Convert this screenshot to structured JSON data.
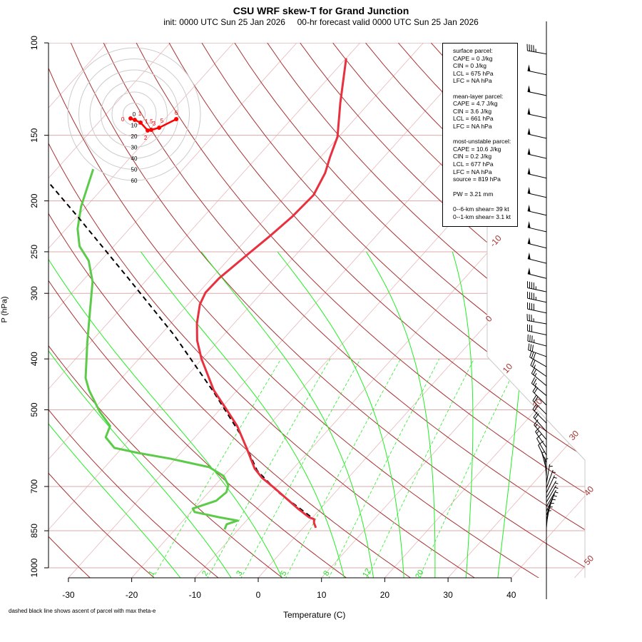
{
  "header": {
    "title": "CSU WRF skew-T for Grand Junction",
    "subtitle": "init: 0000 UTC Sun 25 Jan 2026     00-hr forecast valid 0000 UTC Sun 25 Jan 2026"
  },
  "footnote": "dashed black line shows ascent of parcel with max theta-e",
  "info_box": {
    "surface_title": "surface parcel:",
    "surface_cape": "CAPE = 0 J/kg",
    "surface_cin": "CIN = 0 J/kg",
    "surface_lcl": "LCL = 675 hPa",
    "surface_lfc": "LFC = NA hPa",
    "ml_title": "mean-layer parcel:",
    "ml_cape": "CAPE = 4.7 J/kg",
    "ml_cin": "CIN = 3.6 J/kg",
    "ml_lcl": "LCL = 661 hPa",
    "ml_lfc": "LFC = NA hPa",
    "mu_title": "most-unstable parcel:",
    "mu_cape": "CAPE = 10.6 J/kg",
    "mu_cin": "CIN = 0.2 J/kg",
    "mu_lcl": "LCL = 677 hPa",
    "mu_lfc": "LFC = NA hPa",
    "mu_source": "source = 819 hPa",
    "pw": "PW =  3.21 mm",
    "shear_6km": "0--6-km shear= 39 kt",
    "shear_1km": "0--1-km shear= 3.1 kt"
  },
  "chart_data": {
    "type": "line",
    "subtype": "skew-T log-P",
    "xlabel": "Temperature (C)",
    "ylabel": "P (hPa)",
    "x_ticks": [
      "-30",
      "-20",
      "-10",
      "0",
      "10",
      "20",
      "30",
      "40"
    ],
    "y_ticks": [
      "100",
      "150",
      "200",
      "250",
      "300",
      "400",
      "500",
      "700",
      "850",
      "1000"
    ],
    "isotherm_labels": [
      "-10",
      "0",
      "10",
      "20",
      "30",
      "40",
      "50"
    ],
    "mixing_ratio_labels": [
      "1",
      "2",
      "3",
      "5",
      "8",
      "12",
      "20"
    ],
    "colors": {
      "temperature": "#e8303f",
      "dewpoint": "#5ccb4a",
      "parcel": "#000000",
      "isotherm": "#e8b8b8",
      "dry_adiabat": "#a83232",
      "moist_adiabat": "#22ee22",
      "mixing_ratio": "#22ee22",
      "hodograph": "#ff0000"
    },
    "temperature": [
      [
        107,
        -60.0
      ],
      [
        130,
        -54.6
      ],
      [
        151,
        -50.2
      ],
      [
        165,
        -48.5
      ],
      [
        177,
        -47.0
      ],
      [
        195,
        -45.7
      ],
      [
        214,
        -46.0
      ],
      [
        234,
        -46.8
      ],
      [
        256,
        -47.8
      ],
      [
        281,
        -48.8
      ],
      [
        299,
        -48.9
      ],
      [
        315,
        -48.1
      ],
      [
        342,
        -45.9
      ],
      [
        369,
        -43.4
      ],
      [
        400,
        -40.1
      ],
      [
        459,
        -33.7
      ],
      [
        498,
        -29.1
      ],
      [
        537,
        -24.9
      ],
      [
        595,
        -20.0
      ],
      [
        647,
        -16.1
      ],
      [
        674,
        -13.6
      ],
      [
        702,
        -10.5
      ],
      [
        734,
        -7.2
      ],
      [
        771,
        -3.6
      ],
      [
        801,
        -0.6
      ],
      [
        808,
        0.5
      ],
      [
        821,
        1.0
      ],
      [
        839,
        2.0
      ]
    ],
    "dewpoint": [
      [
        174,
        -84.2
      ],
      [
        205,
        -80.8
      ],
      [
        226,
        -78.2
      ],
      [
        244,
        -75.4
      ],
      [
        260,
        -71.9
      ],
      [
        285,
        -68.3
      ],
      [
        318,
        -65.1
      ],
      [
        372,
        -60.5
      ],
      [
        435,
        -55.7
      ],
      [
        459,
        -53.4
      ],
      [
        504,
        -48.7
      ],
      [
        537,
        -45.0
      ],
      [
        564,
        -44.1
      ],
      [
        591,
        -41.2
      ],
      [
        604,
        -36.8
      ],
      [
        620,
        -30.7
      ],
      [
        643,
        -23.5
      ],
      [
        668,
        -20.0
      ],
      [
        696,
        -17.9
      ],
      [
        718,
        -17.2
      ],
      [
        745,
        -17.6
      ],
      [
        771,
        -20.2
      ],
      [
        783,
        -19.4
      ],
      [
        801,
        -14.8
      ],
      [
        813,
        -11.4
      ],
      [
        826,
        -12.6
      ],
      [
        845,
        -12.2
      ]
    ],
    "parcel": [
      [
        166,
        -96.0
      ],
      [
        215,
        -79.7
      ],
      [
        281,
        -63.1
      ],
      [
        361,
        -47.7
      ],
      [
        463,
        -33.4
      ],
      [
        559,
        -23.0
      ],
      [
        653,
        -15.4
      ],
      [
        718,
        -9.0
      ],
      [
        808,
        0.5
      ]
    ],
    "winds": [
      [
        105,
        45,
        280
      ],
      [
        115,
        50,
        282
      ],
      [
        126,
        50,
        282
      ],
      [
        139,
        50,
        282
      ],
      [
        152,
        50,
        283
      ],
      [
        166,
        50,
        283
      ],
      [
        181,
        50,
        283
      ],
      [
        197,
        50,
        283
      ],
      [
        213,
        50,
        283
      ],
      [
        229,
        50,
        283
      ],
      [
        246,
        50,
        284
      ],
      [
        263,
        50,
        284
      ],
      [
        281,
        50,
        284
      ],
      [
        298,
        45,
        282
      ],
      [
        312,
        45,
        282
      ],
      [
        327,
        40,
        282
      ],
      [
        343,
        35,
        280
      ],
      [
        360,
        30,
        282
      ],
      [
        378,
        35,
        285
      ],
      [
        396,
        30,
        290
      ],
      [
        414,
        30,
        300
      ],
      [
        432,
        25,
        305
      ],
      [
        450,
        25,
        310
      ],
      [
        470,
        25,
        310
      ],
      [
        490,
        20,
        315
      ],
      [
        510,
        20,
        315
      ],
      [
        530,
        20,
        315
      ],
      [
        550,
        20,
        318
      ],
      [
        570,
        15,
        320
      ],
      [
        590,
        15,
        325
      ],
      [
        610,
        10,
        330
      ],
      [
        630,
        10,
        335
      ],
      [
        650,
        5,
        345
      ],
      [
        670,
        5,
        355
      ],
      [
        690,
        5,
        10
      ],
      [
        705,
        5,
        20
      ],
      [
        720,
        5,
        25
      ],
      [
        735,
        5,
        30
      ],
      [
        750,
        5,
        30
      ],
      [
        765,
        5,
        30
      ],
      [
        780,
        5,
        25
      ],
      [
        795,
        5,
        20
      ],
      [
        810,
        5,
        15
      ],
      [
        825,
        5,
        10
      ],
      [
        840,
        5,
        5
      ]
    ],
    "hodograph": {
      "ring_labels": [
        "0",
        "10",
        "20",
        "30",
        "40",
        "50",
        "60"
      ],
      "points": [
        [
          "0",
          -3.2,
          -3.9
        ],
        [
          "1",
          0.6,
          -5.2
        ],
        [
          "1.5",
          5.8,
          -7.7
        ],
        [
          "2",
          12.3,
          -14.8
        ],
        [
          "3",
          15.5,
          -14.2
        ],
        [
          "5",
          22.6,
          -12.3
        ],
        [
          "6",
          38.1,
          -4.5
        ]
      ]
    }
  }
}
